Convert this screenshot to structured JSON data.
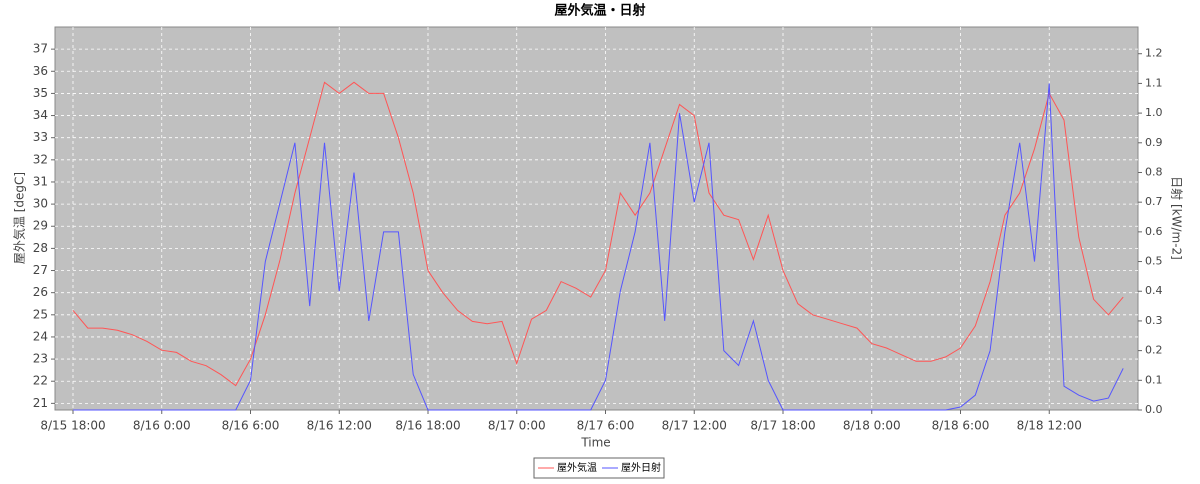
{
  "chart_data": {
    "type": "line",
    "title": "屋外気温・日射",
    "x_label": "Time",
    "y_label": "屋外気温 [degC]",
    "y2_label": "日射 [kW/m-2]",
    "x": [
      "8/15 18:00",
      "8/15 19:00",
      "8/15 20:00",
      "8/15 21:00",
      "8/15 22:00",
      "8/15 23:00",
      "8/16 0:00",
      "8/16 1:00",
      "8/16 2:00",
      "8/16 3:00",
      "8/16 4:00",
      "8/16 5:00",
      "8/16 6:00",
      "8/16 7:00",
      "8/16 8:00",
      "8/16 9:00",
      "8/16 10:00",
      "8/16 11:00",
      "8/16 12:00",
      "8/16 13:00",
      "8/16 14:00",
      "8/16 15:00",
      "8/16 16:00",
      "8/16 17:00",
      "8/16 18:00",
      "8/16 19:00",
      "8/16 20:00",
      "8/16 21:00",
      "8/16 22:00",
      "8/16 23:00",
      "8/17 0:00",
      "8/17 1:00",
      "8/17 2:00",
      "8/17 3:00",
      "8/17 4:00",
      "8/17 5:00",
      "8/17 6:00",
      "8/17 7:00",
      "8/17 8:00",
      "8/17 9:00",
      "8/17 10:00",
      "8/17 11:00",
      "8/17 12:00",
      "8/17 13:00",
      "8/17 14:00",
      "8/17 15:00",
      "8/17 16:00",
      "8/17 17:00",
      "8/17 18:00",
      "8/17 19:00",
      "8/17 20:00",
      "8/17 21:00",
      "8/17 22:00",
      "8/17 23:00",
      "8/18 0:00",
      "8/18 1:00",
      "8/18 2:00",
      "8/18 3:00",
      "8/18 4:00",
      "8/18 5:00",
      "8/18 6:00",
      "8/18 7:00",
      "8/18 8:00",
      "8/18 9:00",
      "8/18 10:00",
      "8/18 11:00",
      "8/18 12:00",
      "8/18 13:00",
      "8/18 14:00",
      "8/18 15:00",
      "8/18 16:00",
      "8/18 17:00"
    ],
    "series": [
      {
        "name": "屋外気温",
        "color": "#ff5555",
        "values": [
          25.2,
          24.4,
          24.4,
          24.3,
          24.1,
          23.8,
          23.4,
          23.3,
          22.9,
          22.7,
          22.3,
          21.8,
          23.0,
          25.0,
          27.5,
          30.5,
          33.0,
          35.5,
          35.0,
          35.5,
          35.0,
          35.0,
          33.0,
          30.5,
          27.0,
          26.0,
          25.2,
          24.7,
          24.6,
          24.7,
          22.8,
          24.8,
          25.2,
          26.5,
          26.2,
          25.8,
          27.0,
          30.5,
          29.5,
          30.5,
          32.5,
          34.5,
          34.0,
          30.5,
          29.5,
          29.3,
          27.5,
          29.5,
          27.0,
          25.5,
          25.0,
          24.8,
          24.6,
          24.4,
          23.7,
          23.5,
          23.2,
          22.9,
          22.9,
          23.1,
          23.5,
          24.5,
          26.5,
          29.5,
          30.5,
          32.5,
          35.0,
          33.8,
          28.5,
          25.7,
          25.0,
          25.8
        ]
      },
      {
        "name": "屋外日射",
        "color": "#5555ff",
        "axis": "y2",
        "values": [
          0,
          0,
          0,
          0,
          0,
          0,
          0,
          0,
          0,
          0,
          0,
          0,
          0.1,
          0.5,
          0.7,
          0.9,
          0.35,
          0.9,
          0.4,
          0.8,
          0.3,
          0.6,
          0.6,
          0.12,
          0,
          0,
          0,
          0,
          0,
          0,
          0,
          0,
          0,
          0,
          0,
          0,
          0.1,
          0.4,
          0.6,
          0.9,
          0.3,
          1.0,
          0.7,
          0.9,
          0.2,
          0.15,
          0.3,
          0.1,
          0,
          0,
          0,
          0,
          0,
          0,
          0,
          0,
          0,
          0,
          0,
          0,
          0.01,
          0.05,
          0.2,
          0.6,
          0.9,
          0.5,
          1.1,
          0.08,
          0.05,
          0.03,
          0.04,
          0.14
        ]
      }
    ],
    "xlim": [
      "8/15 16:47",
      "8/18 18:00"
    ],
    "xticks": [
      "8/15 18:00",
      "8/16 0:00",
      "8/16 6:00",
      "8/16 12:00",
      "8/16 18:00",
      "8/17 0:00",
      "8/17 6:00",
      "8/17 12:00",
      "8/17 18:00",
      "8/18 0:00",
      "8/18 6:00",
      "8/18 12:00"
    ],
    "ylim": [
      20.7,
      38
    ],
    "yticks": [
      21,
      22,
      23,
      24,
      25,
      26,
      27,
      28,
      29,
      30,
      31,
      32,
      33,
      34,
      35,
      36,
      37
    ],
    "y2lim": [
      0,
      1.29
    ],
    "y2ticks": [
      {
        "value": 0,
        "label": "0.0"
      },
      0.1,
      0.2,
      0.3,
      0.4,
      0.5,
      0.6,
      0.7,
      0.8,
      0.9,
      {
        "value": 1,
        "label": "1.0"
      },
      1.1,
      1.2
    ],
    "grid": true
  }
}
